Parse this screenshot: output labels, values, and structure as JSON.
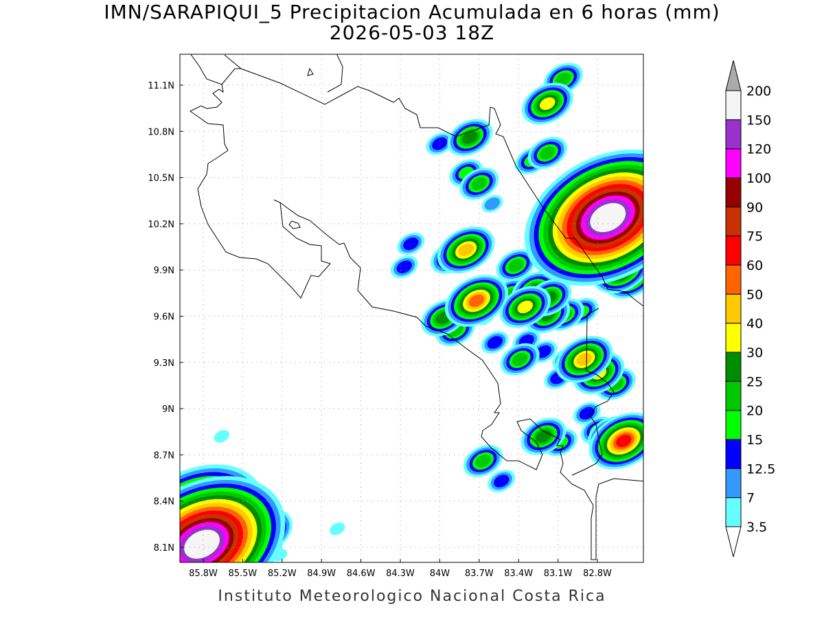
{
  "header": {
    "title": "IMN/SARAPIQUI_5 Precipitacion Acumulada en 6 horas (mm)",
    "subtitle": "2026-05-03 18Z"
  },
  "footer": "Instituto Meteorologico Nacional Costa Rica",
  "map": {
    "lon_range": [
      -86.0,
      -82.45
    ],
    "lat_range": [
      8.0,
      11.3
    ],
    "lon_ticks": [
      {
        "v": -85.8,
        "label": "85.8W"
      },
      {
        "v": -85.5,
        "label": "85.5W"
      },
      {
        "v": -85.2,
        "label": "85.2W"
      },
      {
        "v": -84.9,
        "label": "84.9W"
      },
      {
        "v": -84.6,
        "label": "84.6W"
      },
      {
        "v": -84.3,
        "label": "84.3W"
      },
      {
        "v": -84.0,
        "label": "84W"
      },
      {
        "v": -83.7,
        "label": "83.7W"
      },
      {
        "v": -83.4,
        "label": "83.4W"
      },
      {
        "v": -83.1,
        "label": "83.1W"
      },
      {
        "v": -82.8,
        "label": "82.8W"
      }
    ],
    "lat_ticks": [
      {
        "v": 11.1,
        "label": "11.1N"
      },
      {
        "v": 10.8,
        "label": "10.8N"
      },
      {
        "v": 10.5,
        "label": "10.5N"
      },
      {
        "v": 10.2,
        "label": "10.2N"
      },
      {
        "v": 9.9,
        "label": "9.9N"
      },
      {
        "v": 9.6,
        "label": "9.6N"
      },
      {
        "v": 9.3,
        "label": "9.3N"
      },
      {
        "v": 9.0,
        "label": "9N"
      },
      {
        "v": 8.7,
        "label": "8.7N"
      },
      {
        "v": 8.4,
        "label": "8.4N"
      },
      {
        "v": 8.1,
        "label": "8.1N"
      }
    ],
    "grid": "dotted",
    "precip_cells_lon_lat_peakmm": [
      [
        -83.18,
        10.98,
        30
      ],
      [
        -83.06,
        11.14,
        20
      ],
      [
        -84.0,
        10.72,
        12.5
      ],
      [
        -83.77,
        10.76,
        25
      ],
      [
        -83.3,
        10.61,
        15
      ],
      [
        -83.18,
        10.66,
        20
      ],
      [
        -83.8,
        10.53,
        15
      ],
      [
        -83.7,
        10.46,
        20
      ],
      [
        -83.6,
        10.33,
        7
      ],
      [
        -82.73,
        10.56,
        20
      ],
      [
        -82.6,
        10.5,
        20
      ],
      [
        -82.75,
        10.44,
        15
      ],
      [
        -82.72,
        10.24,
        150
      ],
      [
        -82.82,
        10.3,
        40
      ],
      [
        -82.62,
        10.08,
        40
      ],
      [
        -82.62,
        9.9,
        40
      ],
      [
        -82.55,
        9.85,
        30
      ],
      [
        -84.22,
        10.07,
        12.5
      ],
      [
        -83.92,
        9.98,
        20
      ],
      [
        -83.8,
        10.03,
        40
      ],
      [
        -84.27,
        9.92,
        12.5
      ],
      [
        -83.42,
        9.93,
        20
      ],
      [
        -83.72,
        9.7,
        50
      ],
      [
        -83.46,
        9.74,
        20
      ],
      [
        -83.35,
        9.66,
        30
      ],
      [
        -83.28,
        9.77,
        25
      ],
      [
        -83.18,
        9.61,
        25
      ],
      [
        -83.17,
        9.72,
        25
      ],
      [
        -83.05,
        9.61,
        20
      ],
      [
        -82.92,
        9.63,
        15
      ],
      [
        -83.97,
        9.59,
        25
      ],
      [
        -83.88,
        9.51,
        20
      ],
      [
        -83.66,
        9.6,
        7
      ],
      [
        -83.58,
        9.43,
        12.5
      ],
      [
        -83.34,
        9.44,
        12.5
      ],
      [
        -83.39,
        9.32,
        20
      ],
      [
        -83.21,
        9.37,
        12.5
      ],
      [
        -82.9,
        9.32,
        40
      ],
      [
        -82.79,
        9.23,
        30
      ],
      [
        -82.66,
        9.16,
        20
      ],
      [
        -83.04,
        9.32,
        12.5
      ],
      [
        -83.1,
        9.2,
        12.5
      ],
      [
        -82.88,
        8.97,
        12.5
      ],
      [
        -83.21,
        8.82,
        25
      ],
      [
        -83.08,
        8.78,
        15
      ],
      [
        -82.8,
        8.86,
        15
      ],
      [
        -82.6,
        8.79,
        60
      ],
      [
        -82.7,
        8.83,
        25
      ],
      [
        -83.67,
        8.66,
        20
      ],
      [
        -83.53,
        8.53,
        12.5
      ],
      [
        -85.81,
        8.12,
        150
      ],
      [
        -85.86,
        8.27,
        90
      ],
      [
        -85.65,
        8.44,
        25
      ],
      [
        -85.34,
        8.2,
        40
      ],
      [
        -85.39,
        8.08,
        30
      ],
      [
        -85.94,
        8.5,
        20
      ],
      [
        -84.78,
        8.22,
        3.5
      ],
      [
        -85.22,
        8.05,
        3.5
      ],
      [
        -85.66,
        8.82,
        3.5
      ]
    ]
  },
  "colorbar": {
    "labels": [
      "3.5",
      "7",
      "12.5",
      "15",
      "20",
      "25",
      "30",
      "40",
      "50",
      "60",
      "75",
      "90",
      "100",
      "120",
      "150",
      "200"
    ],
    "levels": [
      3.5,
      7,
      12.5,
      15,
      20,
      25,
      30,
      40,
      50,
      60,
      75,
      90,
      100,
      120,
      150,
      200
    ],
    "colors": [
      "#66ffff",
      "#3399ff",
      "#0000ff",
      "#00ff00",
      "#00c800",
      "#008c00",
      "#ffff00",
      "#ffc800",
      "#ff6400",
      "#ff0000",
      "#c83200",
      "#960000",
      "#ff00ff",
      "#9932cc",
      "#f5f5f5",
      "#aaaaaa"
    ],
    "below_color": "#ffffff",
    "above_color": "#aaaaaa"
  }
}
